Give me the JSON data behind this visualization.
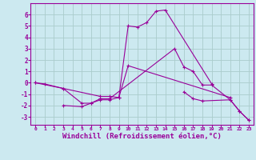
{
  "xlabel": "Windchill (Refroidissement éolien,°C)",
  "xlabel_fontsize": 6.5,
  "background_color": "#cce9f0",
  "line_color": "#990099",
  "ylim": [
    -3.7,
    7.0
  ],
  "yticks": [
    -3,
    -2,
    -1,
    0,
    1,
    2,
    3,
    4,
    5,
    6
  ],
  "xlim": [
    -0.5,
    23.5
  ],
  "grid_color": "#aacccc",
  "lines": [
    {
      "x": [
        0,
        1,
        3,
        7,
        8,
        9,
        10,
        11,
        12,
        13,
        14,
        19
      ],
      "y": [
        0,
        -0.1,
        -0.5,
        -1.2,
        -1.2,
        -1.3,
        5.0,
        4.9,
        5.3,
        6.3,
        6.4,
        -0.1
      ]
    },
    {
      "x": [
        0,
        3,
        5,
        6,
        7,
        8,
        9,
        10,
        21
      ],
      "y": [
        0,
        -0.5,
        -1.8,
        -1.8,
        -1.5,
        -1.5,
        -1.3,
        1.5,
        -1.3
      ]
    },
    {
      "x": [
        3,
        5,
        6,
        7,
        8,
        15,
        16,
        17,
        18,
        19,
        21,
        22,
        23
      ],
      "y": [
        -2.0,
        -2.1,
        -1.8,
        -1.4,
        -1.4,
        3.0,
        1.4,
        1.0,
        -0.2,
        -0.2,
        -1.5,
        -2.5,
        -3.3
      ]
    },
    {
      "x": [
        16,
        17,
        18,
        21,
        22,
        23
      ],
      "y": [
        -0.8,
        -1.4,
        -1.6,
        -1.5,
        -2.5,
        -3.3
      ]
    }
  ]
}
